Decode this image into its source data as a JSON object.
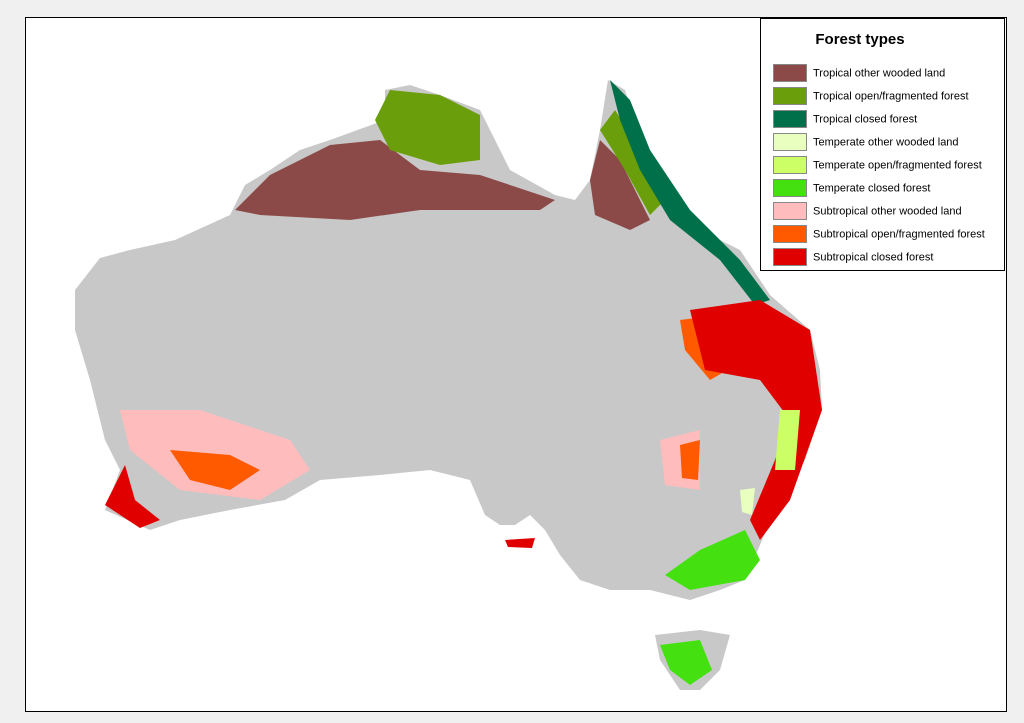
{
  "legend": {
    "title": "Forest types",
    "items": [
      {
        "label": "Tropical other wooded land",
        "color": "#8b4a47"
      },
      {
        "label": "Tropical open/fragmented forest",
        "color": "#6a9e0a"
      },
      {
        "label": "Tropical closed forest",
        "color": "#00704a"
      },
      {
        "label": "Temperate other wooded land",
        "color": "#e8ffc0"
      },
      {
        "label": "Temperate open/fragmented forest",
        "color": "#ccff66"
      },
      {
        "label": "Temperate closed forest",
        "color": "#44e010"
      },
      {
        "label": "Subtropical other wooded land",
        "color": "#ffbcbc"
      },
      {
        "label": "Subtropical open/fragmented forest",
        "color": "#ff5a00"
      },
      {
        "label": "Subtropical closed forest",
        "color": "#e00000"
      }
    ]
  }
}
